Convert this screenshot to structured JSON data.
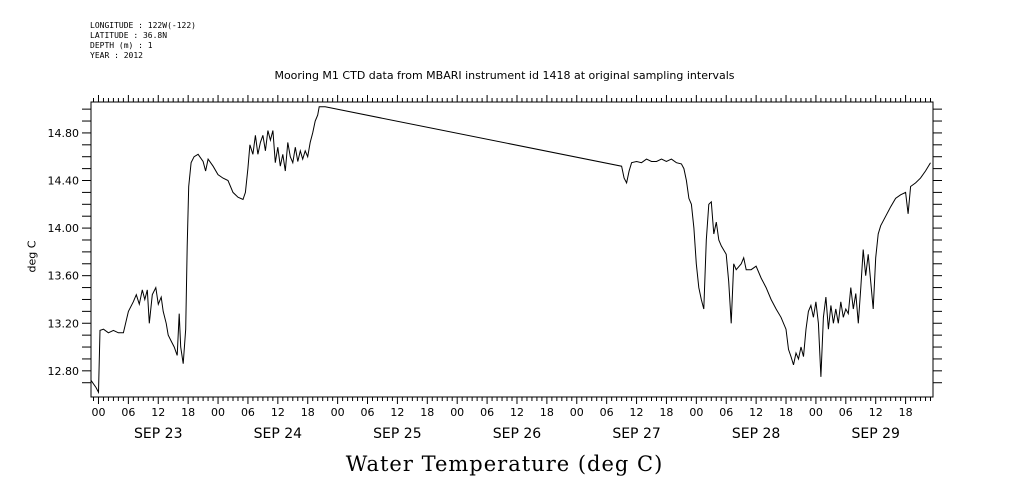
{
  "meta": {
    "longitude": "LONGITUDE : 122W(-122)",
    "latitude": "LATITUDE : 36.8N",
    "depth": "DEPTH (m) : 1",
    "year": "YEAR : 2012"
  },
  "chart_data": {
    "type": "line",
    "title": "Mooring M1 CTD data from MBARI instrument id 1418 at original sampling intervals",
    "subtitle": "Water Temperature (deg C)",
    "ylabel": "deg C",
    "xlabel": "",
    "ylim": [
      12.58,
      15.06
    ],
    "yticks": [
      "12.80",
      "13.20",
      "13.60",
      "14.00",
      "14.40",
      "14.80"
    ],
    "xlim_hours": [
      -1.5,
      167.5
    ],
    "hour_ticks": [
      "00",
      "06",
      "12",
      "18",
      "00",
      "06",
      "12",
      "18",
      "00",
      "06",
      "12",
      "18",
      "00",
      "06",
      "12",
      "18",
      "00",
      "06",
      "12",
      "18",
      "00",
      "06",
      "12",
      "18",
      "00",
      "06",
      "12",
      "18"
    ],
    "day_labels": [
      "SEP 23",
      "SEP 24",
      "SEP 25",
      "SEP 26",
      "SEP 27",
      "SEP 28",
      "SEP 29"
    ],
    "grid": false,
    "series": [
      {
        "values": [
          [
            -1.5,
            12.72
          ],
          [
            -0.5,
            12.66
          ],
          [
            0,
            12.62
          ],
          [
            0.3,
            13.14
          ],
          [
            1,
            13.15
          ],
          [
            2,
            13.12
          ],
          [
            3,
            13.14
          ],
          [
            4,
            13.12
          ],
          [
            5,
            13.12
          ],
          [
            6,
            13.3
          ],
          [
            7,
            13.38
          ],
          [
            7.6,
            13.44
          ],
          [
            8.2,
            13.36
          ],
          [
            8.8,
            13.48
          ],
          [
            9.3,
            13.4
          ],
          [
            9.8,
            13.48
          ],
          [
            10.2,
            13.2
          ],
          [
            10.8,
            13.44
          ],
          [
            11.5,
            13.5
          ],
          [
            12,
            13.36
          ],
          [
            12.6,
            13.42
          ],
          [
            13,
            13.3
          ],
          [
            13.6,
            13.2
          ],
          [
            14,
            13.1
          ],
          [
            14.6,
            13.05
          ],
          [
            15.2,
            13.0
          ],
          [
            15.8,
            12.93
          ],
          [
            16.2,
            13.28
          ],
          [
            16.5,
            13.0
          ],
          [
            17,
            12.86
          ],
          [
            17.5,
            13.15
          ],
          [
            17.8,
            13.85
          ],
          [
            18.1,
            14.35
          ],
          [
            18.6,
            14.55
          ],
          [
            19.2,
            14.6
          ],
          [
            20,
            14.62
          ],
          [
            21,
            14.56
          ],
          [
            21.5,
            14.48
          ],
          [
            22,
            14.58
          ],
          [
            23,
            14.52
          ],
          [
            24,
            14.45
          ],
          [
            25,
            14.42
          ],
          [
            26,
            14.4
          ],
          [
            27,
            14.3
          ],
          [
            28,
            14.26
          ],
          [
            29,
            14.24
          ],
          [
            29.5,
            14.3
          ],
          [
            30,
            14.5
          ],
          [
            30.4,
            14.7
          ],
          [
            31,
            14.62
          ],
          [
            31.5,
            14.78
          ],
          [
            32,
            14.62
          ],
          [
            32.5,
            14.72
          ],
          [
            33,
            14.78
          ],
          [
            33.5,
            14.65
          ],
          [
            34,
            14.82
          ],
          [
            34.5,
            14.74
          ],
          [
            35,
            14.82
          ],
          [
            35.5,
            14.55
          ],
          [
            36,
            14.68
          ],
          [
            36.5,
            14.52
          ],
          [
            37,
            14.62
          ],
          [
            37.5,
            14.48
          ],
          [
            38,
            14.72
          ],
          [
            38.5,
            14.6
          ],
          [
            39,
            14.55
          ],
          [
            39.5,
            14.68
          ],
          [
            40,
            14.56
          ],
          [
            40.5,
            14.65
          ],
          [
            41,
            14.58
          ],
          [
            41.5,
            14.65
          ],
          [
            42,
            14.6
          ],
          [
            42.5,
            14.72
          ],
          [
            43,
            14.8
          ],
          [
            43.5,
            14.9
          ],
          [
            44,
            14.95
          ],
          [
            44.3,
            15.02
          ],
          [
            45.5,
            15.02
          ],
          [
            105,
            14.52
          ],
          [
            105.5,
            14.42
          ],
          [
            106,
            14.38
          ],
          [
            106.5,
            14.48
          ],
          [
            107,
            14.55
          ],
          [
            108,
            14.56
          ],
          [
            109,
            14.55
          ],
          [
            110,
            14.58
          ],
          [
            111,
            14.56
          ],
          [
            112,
            14.56
          ],
          [
            113,
            14.58
          ],
          [
            114,
            14.56
          ],
          [
            115,
            14.58
          ],
          [
            116,
            14.55
          ],
          [
            117,
            14.54
          ],
          [
            117.5,
            14.5
          ],
          [
            118,
            14.4
          ],
          [
            118.5,
            14.25
          ],
          [
            119,
            14.2
          ],
          [
            119.5,
            14.0
          ],
          [
            120,
            13.7
          ],
          [
            120.5,
            13.5
          ],
          [
            121,
            13.4
          ],
          [
            121.5,
            13.32
          ],
          [
            122,
            13.9
          ],
          [
            122.5,
            14.2
          ],
          [
            123,
            14.22
          ],
          [
            123.5,
            13.95
          ],
          [
            124,
            14.05
          ],
          [
            124.5,
            13.9
          ],
          [
            125,
            13.85
          ],
          [
            126,
            13.78
          ],
          [
            126.5,
            13.55
          ],
          [
            127,
            13.2
          ],
          [
            127.5,
            13.7
          ],
          [
            128,
            13.65
          ],
          [
            129,
            13.7
          ],
          [
            129.5,
            13.75
          ],
          [
            130,
            13.65
          ],
          [
            131,
            13.65
          ],
          [
            132,
            13.68
          ],
          [
            133,
            13.58
          ],
          [
            134,
            13.5
          ],
          [
            135,
            13.4
          ],
          [
            136,
            13.32
          ],
          [
            137,
            13.25
          ],
          [
            138,
            13.15
          ],
          [
            138.5,
            12.98
          ],
          [
            139,
            12.92
          ],
          [
            139.5,
            12.85
          ],
          [
            140,
            12.95
          ],
          [
            140.5,
            12.9
          ],
          [
            141,
            13.0
          ],
          [
            141.5,
            12.92
          ],
          [
            142,
            13.15
          ],
          [
            142.5,
            13.3
          ],
          [
            143,
            13.35
          ],
          [
            143.5,
            13.25
          ],
          [
            144,
            13.38
          ],
          [
            144.5,
            13.2
          ],
          [
            145,
            12.75
          ],
          [
            145.5,
            13.25
          ],
          [
            146,
            13.42
          ],
          [
            146.5,
            13.15
          ],
          [
            147,
            13.35
          ],
          [
            147.5,
            13.2
          ],
          [
            148,
            13.32
          ],
          [
            148.5,
            13.2
          ],
          [
            149,
            13.38
          ],
          [
            149.5,
            13.25
          ],
          [
            150,
            13.32
          ],
          [
            150.5,
            13.28
          ],
          [
            151,
            13.5
          ],
          [
            151.5,
            13.32
          ],
          [
            152,
            13.45
          ],
          [
            152.5,
            13.2
          ],
          [
            153,
            13.5
          ],
          [
            153.5,
            13.82
          ],
          [
            154,
            13.6
          ],
          [
            154.5,
            13.78
          ],
          [
            155,
            13.55
          ],
          [
            155.5,
            13.32
          ],
          [
            156,
            13.75
          ],
          [
            156.5,
            13.95
          ],
          [
            157,
            14.02
          ],
          [
            158,
            14.1
          ],
          [
            159,
            14.18
          ],
          [
            160,
            14.25
          ],
          [
            161,
            14.28
          ],
          [
            162,
            14.3
          ],
          [
            162.5,
            14.12
          ],
          [
            163,
            14.35
          ],
          [
            164,
            14.38
          ],
          [
            165,
            14.42
          ],
          [
            166,
            14.48
          ],
          [
            167,
            14.55
          ]
        ]
      }
    ]
  }
}
